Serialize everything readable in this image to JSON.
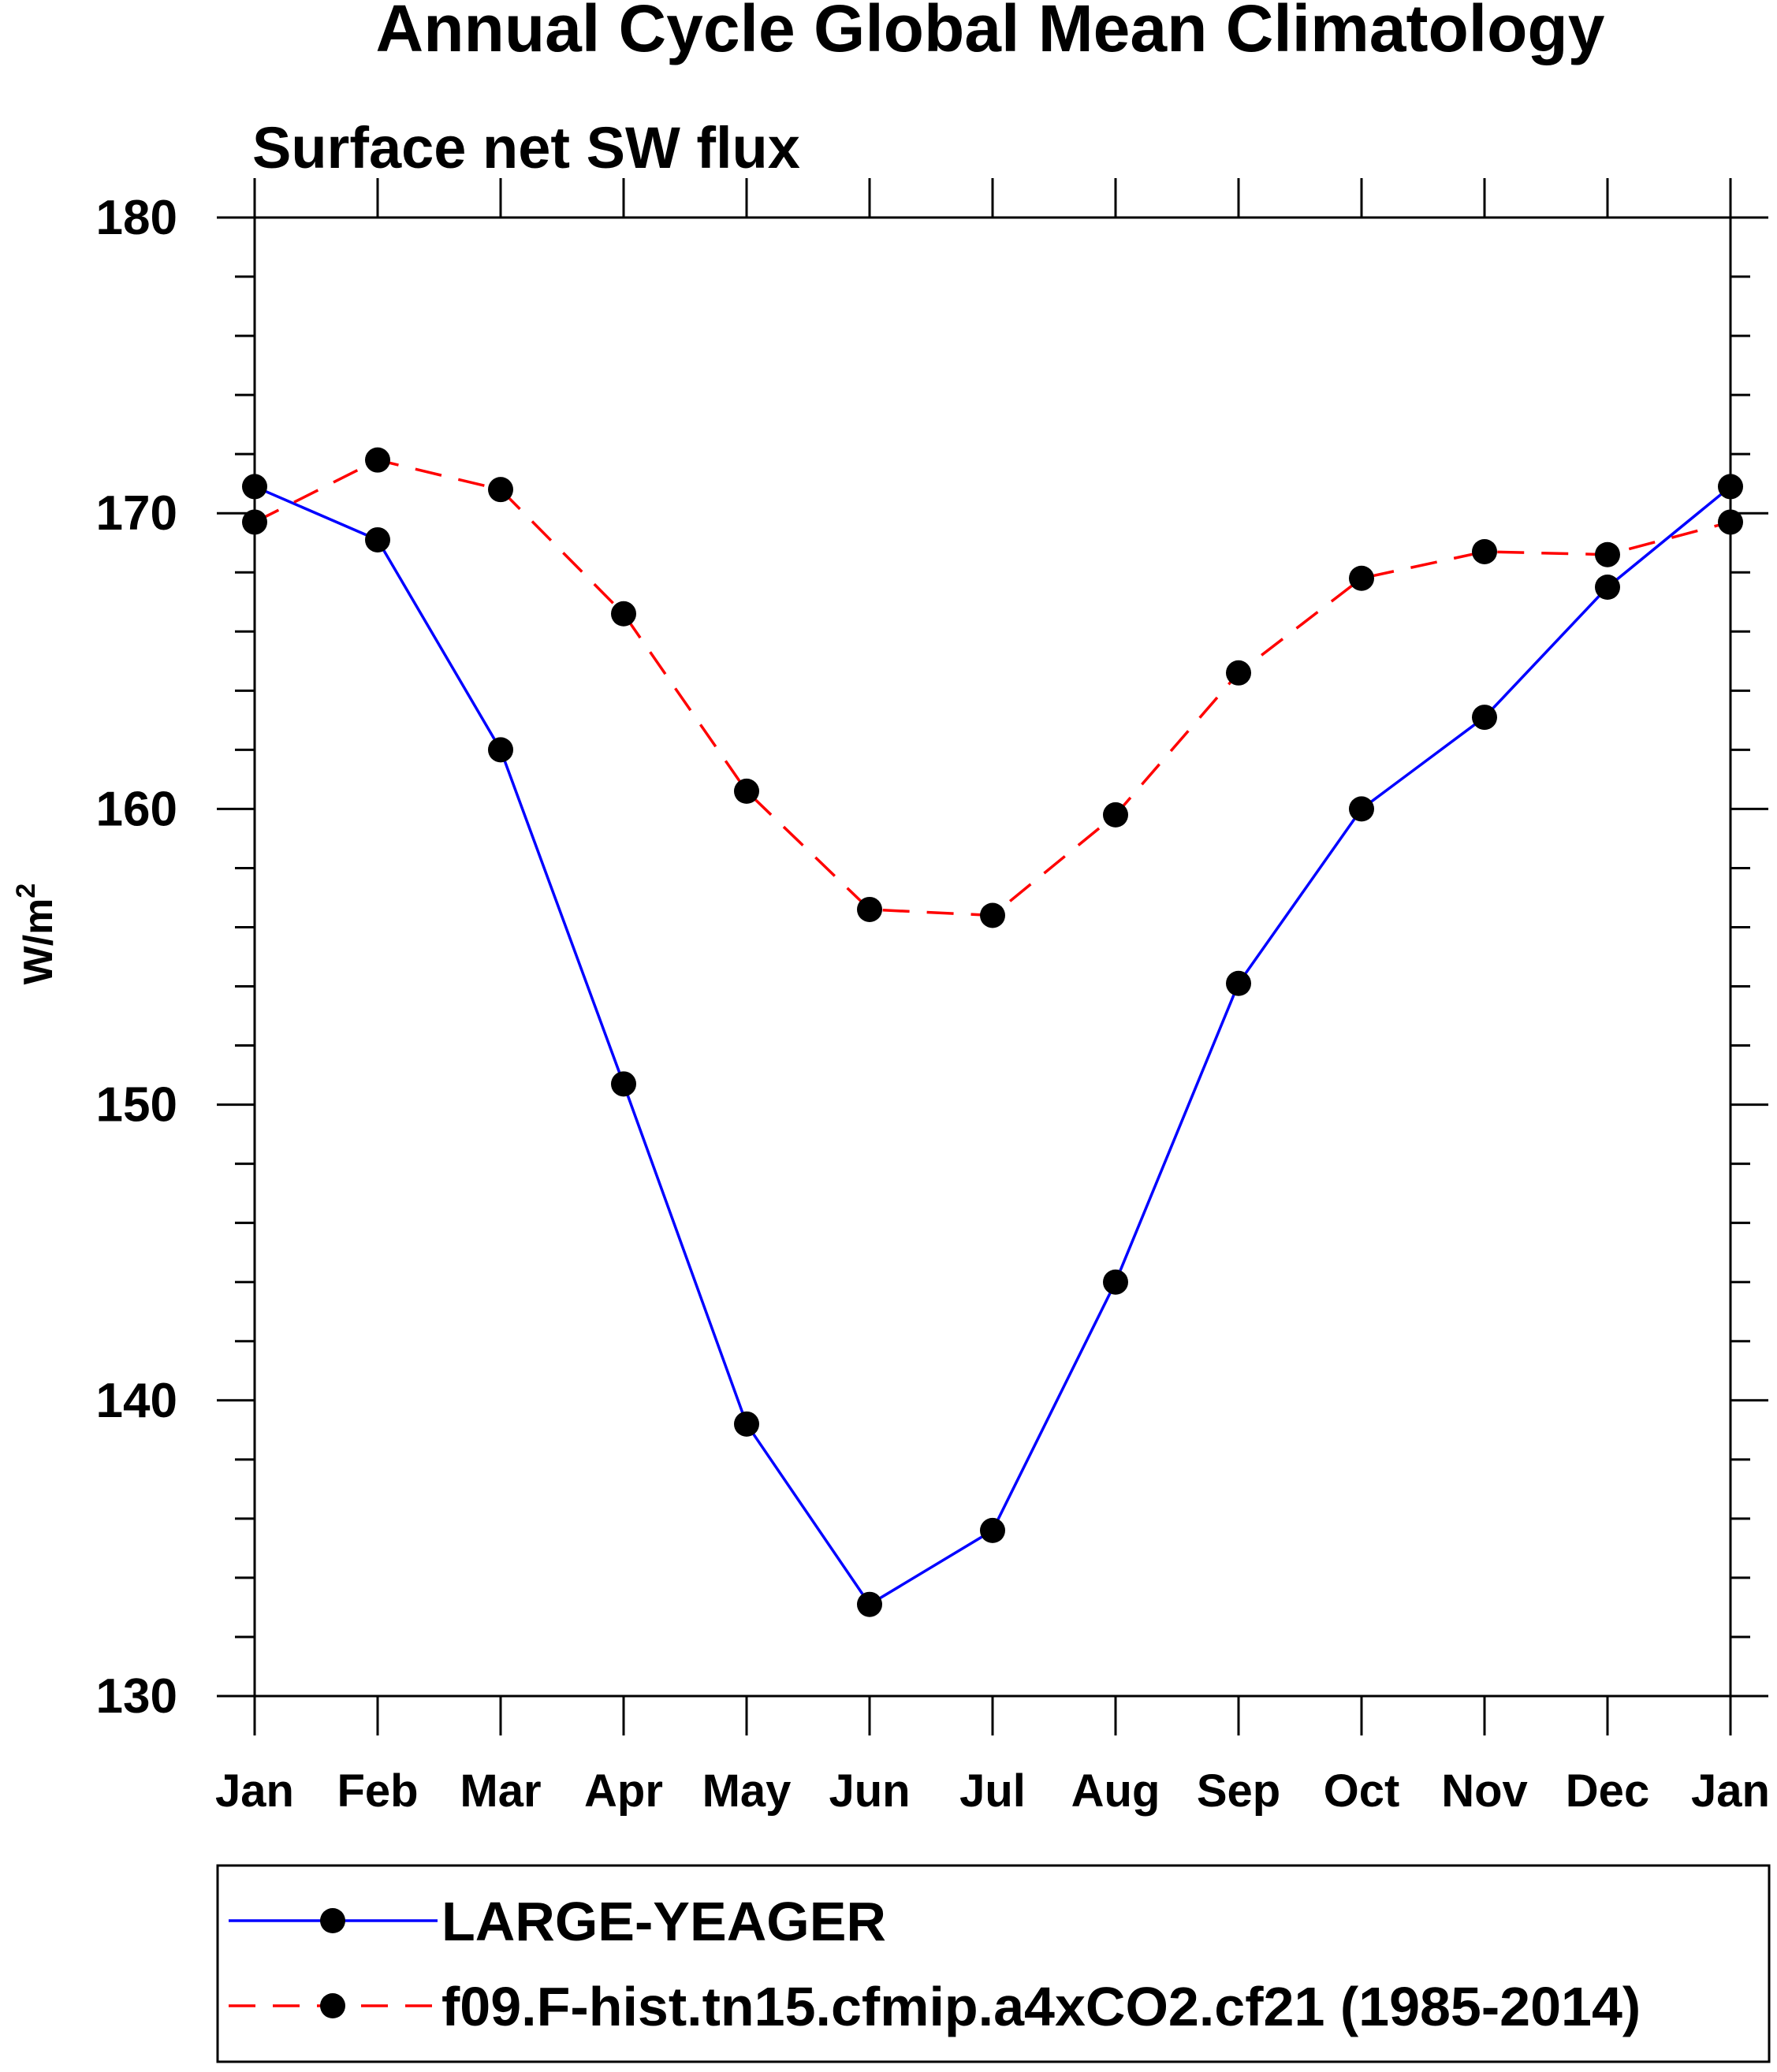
{
  "chart_data": {
    "type": "line",
    "title": "Annual Cycle Global Mean Climatology",
    "subtitle": "Surface net SW flux",
    "ylabel_base": "W/m",
    "ylabel_sup": "2",
    "xlabel": "",
    "x_ticks": [
      "Jan",
      "Feb",
      "Mar",
      "Apr",
      "May",
      "Jun",
      "Jul",
      "Aug",
      "Sep",
      "Oct",
      "Nov",
      "Dec",
      "Jan"
    ],
    "y_ticks": [
      130,
      140,
      150,
      160,
      170,
      180
    ],
    "ylim": [
      130,
      180
    ],
    "y_minor_step": 2,
    "grid": false,
    "legend_position": "bottom",
    "series": [
      {
        "name": "LARGE-YEAGER",
        "color": "#0000ff",
        "line_style": "solid",
        "marker": "filled-circle",
        "values": [
          170.9,
          169.1,
          162.0,
          150.7,
          139.2,
          133.1,
          135.6,
          144.0,
          154.1,
          160.0,
          163.1,
          167.5,
          170.9
        ]
      },
      {
        "name": "f09.F-hist.tn15.cfmip.a4xCO2.cf21 (1985-2014)",
        "color": "#ff0000",
        "line_style": "dashed",
        "marker": "filled-circle",
        "values": [
          169.7,
          171.8,
          170.8,
          166.6,
          160.6,
          156.6,
          156.4,
          159.8,
          164.6,
          167.8,
          168.7,
          168.6,
          169.7
        ]
      }
    ]
  }
}
